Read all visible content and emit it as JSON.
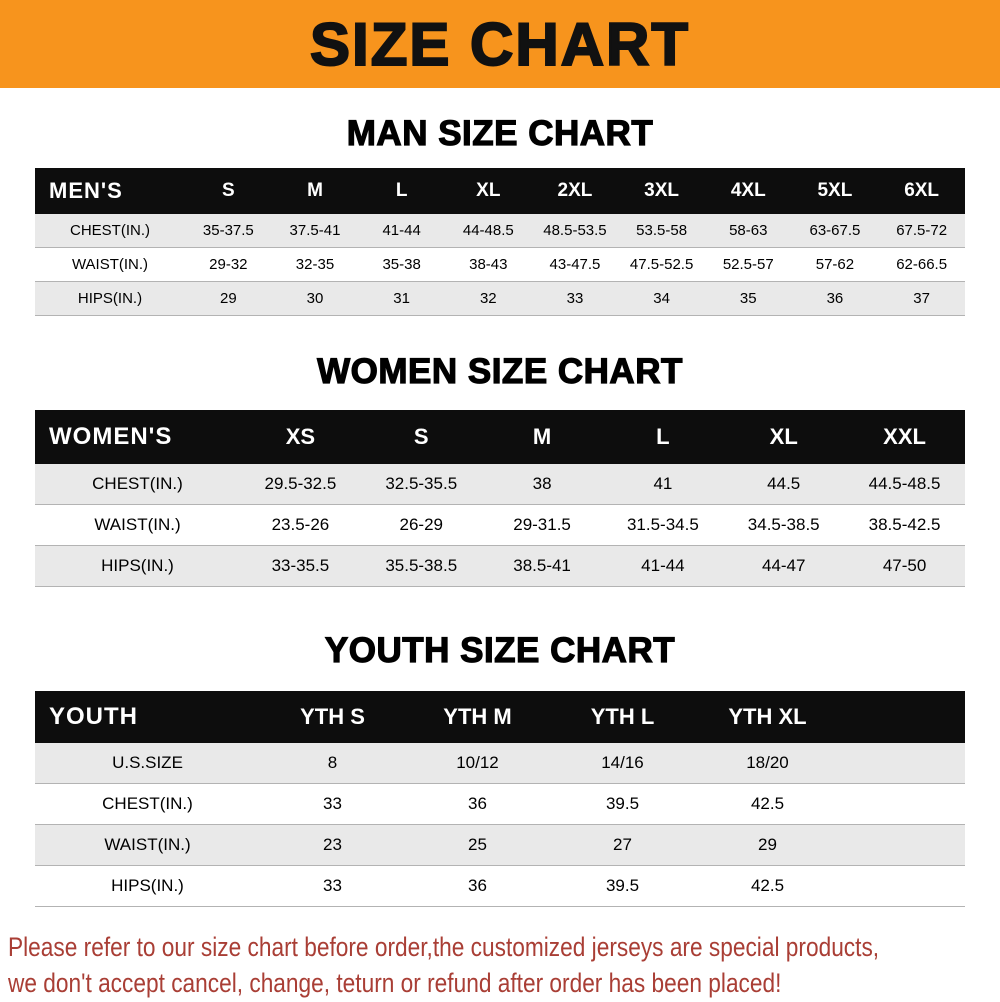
{
  "banner": {
    "title": "SIZE CHART"
  },
  "colors": {
    "banner_orange": "#f7941d",
    "title_black": "#111111",
    "header_black": "#0d0d0d",
    "row_alt_gray": "#e9e9e9",
    "row_line_gray": "#b3b3b3",
    "footer_red": "#a93e35"
  },
  "man_section": {
    "heading": "MAN SIZE CHART",
    "table": {
      "header": [
        "MEN'S",
        "S",
        "M",
        "L",
        "XL",
        "2XL",
        "3XL",
        "4XL",
        "5XL",
        "6XL"
      ],
      "rows": [
        [
          "CHEST(IN.)",
          "35-37.5",
          "37.5-41",
          "41-44",
          "44-48.5",
          "48.5-53.5",
          "53.5-58",
          "58-63",
          "63-67.5",
          "67.5-72"
        ],
        [
          "WAIST(IN.)",
          "29-32",
          "32-35",
          "35-38",
          "38-43",
          "43-47.5",
          "47.5-52.5",
          "52.5-57",
          "57-62",
          "62-66.5"
        ],
        [
          "HIPS(IN.)",
          "29",
          "30",
          "31",
          "32",
          "33",
          "34",
          "35",
          "36",
          "37"
        ]
      ]
    }
  },
  "women_section": {
    "heading": "WOMEN SIZE CHART",
    "table": {
      "header": [
        "WOMEN'S",
        "XS",
        "S",
        "M",
        "L",
        "XL",
        "XXL"
      ],
      "rows": [
        [
          "CHEST(IN.)",
          "29.5-32.5",
          "32.5-35.5",
          "38",
          "41",
          "44.5",
          "44.5-48.5"
        ],
        [
          "WAIST(IN.)",
          "23.5-26",
          "26-29",
          "29-31.5",
          "31.5-34.5",
          "34.5-38.5",
          "38.5-42.5"
        ],
        [
          "HIPS(IN.)",
          "33-35.5",
          "35.5-38.5",
          "38.5-41",
          "41-44",
          "44-47",
          "47-50"
        ]
      ]
    }
  },
  "youth_section": {
    "heading": "YOUTH SIZE CHART",
    "table": {
      "header": [
        "YOUTH",
        "YTH S",
        "YTH M",
        "YTH L",
        "YTH XL"
      ],
      "rows": [
        [
          "U.S.SIZE",
          "8",
          "10/12",
          "14/16",
          "18/20"
        ],
        [
          "CHEST(IN.)",
          "33",
          "36",
          "39.5",
          "42.5"
        ],
        [
          "WAIST(IN.)",
          "23",
          "25",
          "27",
          "29"
        ],
        [
          "HIPS(IN.)",
          "33",
          "36",
          "39.5",
          "42.5"
        ]
      ]
    }
  },
  "footer": {
    "line1": "Please refer to our size chart before order,the customized jerseys are special products,",
    "line2": "we don't accept cancel, change, teturn or refund after order has been placed!"
  }
}
